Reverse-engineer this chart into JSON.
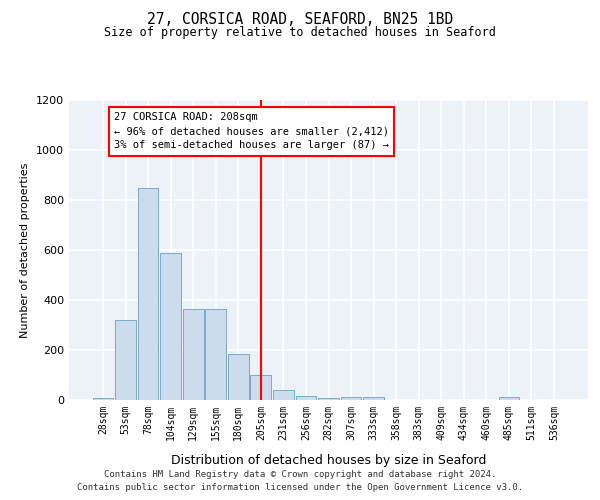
{
  "title1": "27, CORSICA ROAD, SEAFORD, BN25 1BD",
  "title2": "Size of property relative to detached houses in Seaford",
  "xlabel": "Distribution of detached houses by size in Seaford",
  "ylabel": "Number of detached properties",
  "bar_color": "#ccdcec",
  "bar_edge_color": "#7aaac8",
  "categories": [
    "28sqm",
    "53sqm",
    "78sqm",
    "104sqm",
    "129sqm",
    "155sqm",
    "180sqm",
    "205sqm",
    "231sqm",
    "256sqm",
    "282sqm",
    "307sqm",
    "333sqm",
    "358sqm",
    "383sqm",
    "409sqm",
    "434sqm",
    "460sqm",
    "485sqm",
    "511sqm",
    "536sqm"
  ],
  "values": [
    10,
    320,
    850,
    590,
    365,
    365,
    185,
    100,
    42,
    18,
    10,
    14,
    14,
    0,
    0,
    0,
    0,
    0,
    14,
    0,
    0
  ],
  "ylim": [
    0,
    1200
  ],
  "yticks": [
    0,
    200,
    400,
    600,
    800,
    1000,
    1200
  ],
  "annotation_line": "27 CORSICA ROAD: 208sqm",
  "annotation_line2": "← 96% of detached houses are smaller (2,412)",
  "annotation_line3": "3% of semi-detached houses are larger (87) →",
  "line_color": "red",
  "footer1": "Contains HM Land Registry data © Crown copyright and database right 2024.",
  "footer2": "Contains public sector information licensed under the Open Government Licence v3.0.",
  "bg_color": "#edf2f9",
  "grid_color": "white",
  "spine_color": "#b0c0d0"
}
